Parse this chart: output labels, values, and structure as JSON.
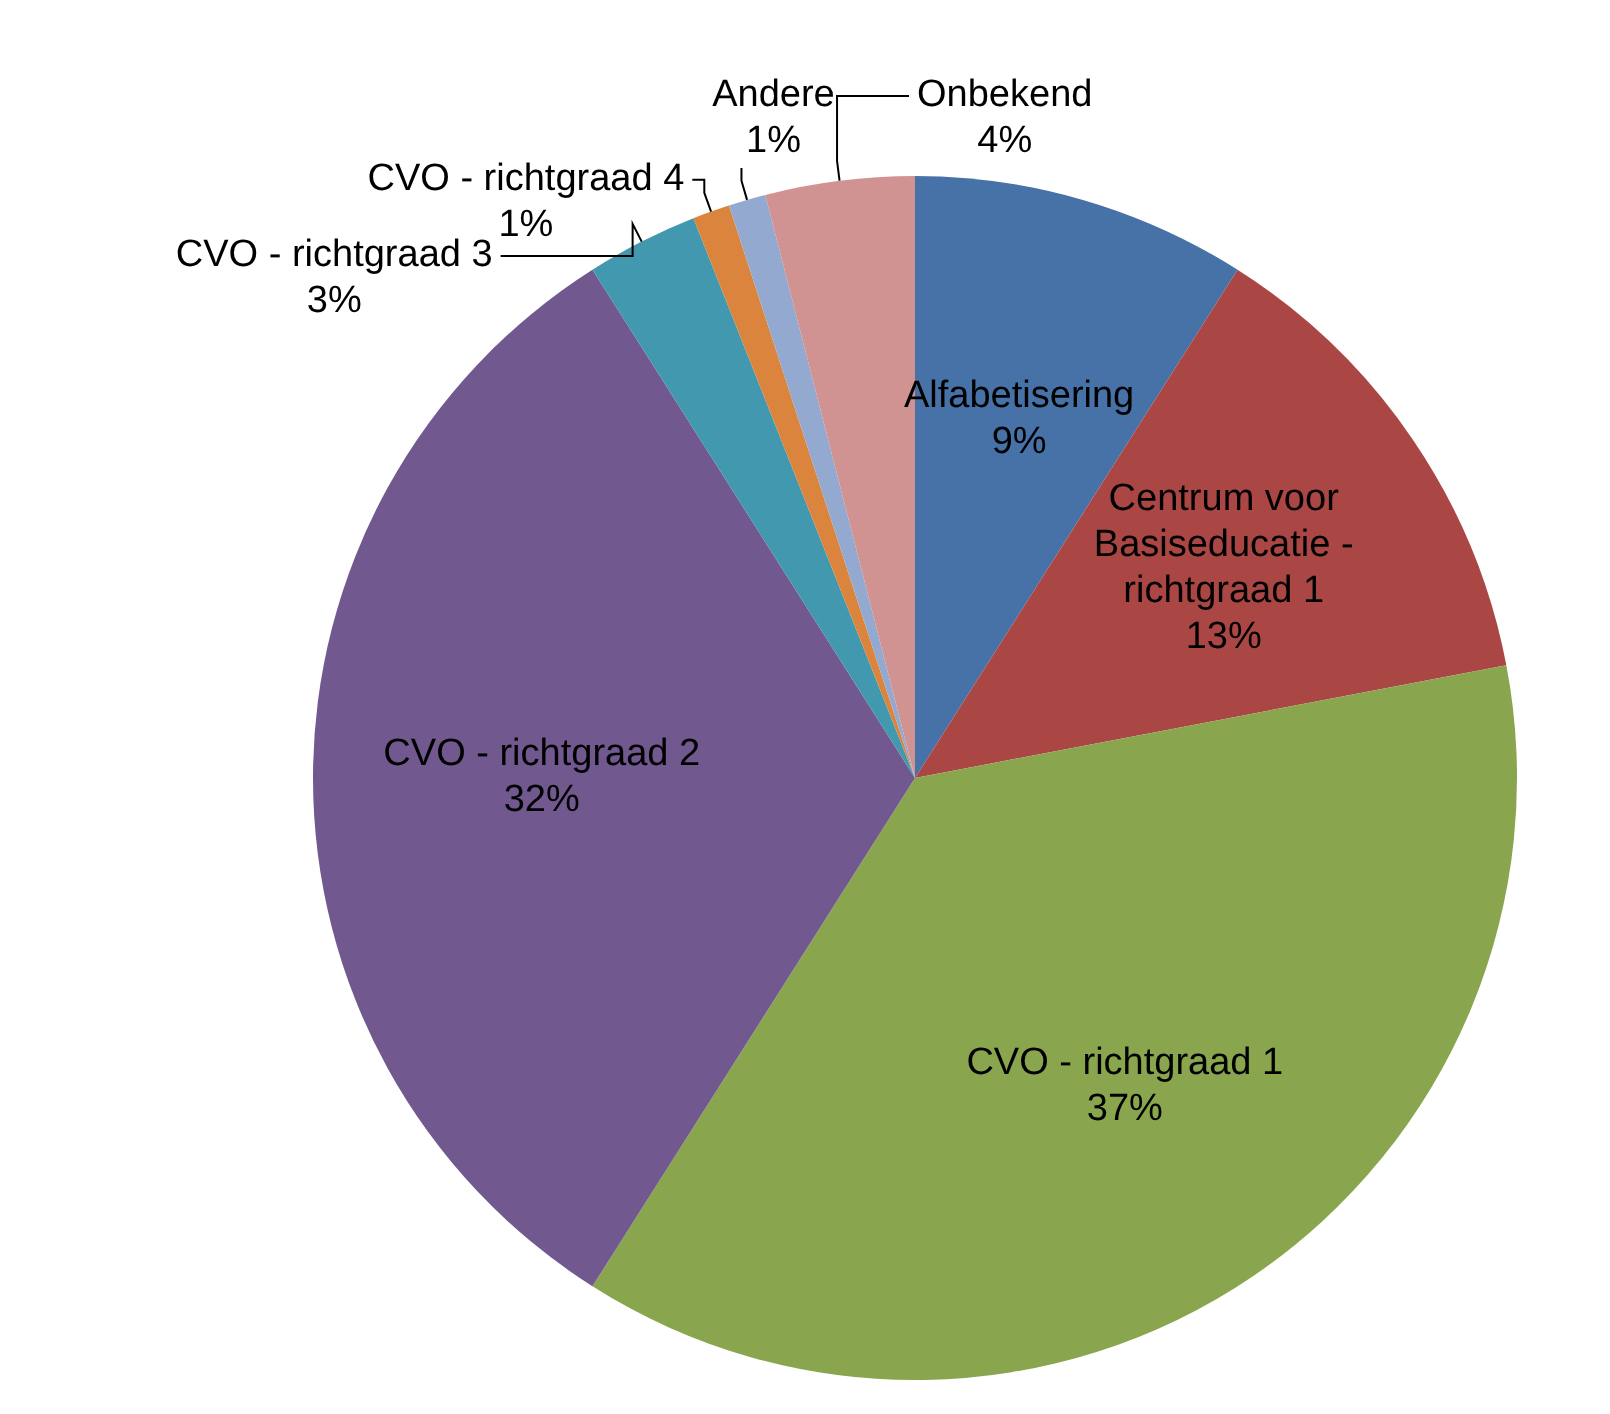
{
  "chart_data": {
    "type": "pie",
    "categories": [
      "Alfabetisering",
      "Centrum voor Basiseducatie - richtgraad 1",
      "CVO - richtgraad 1",
      "CVO - richtgraad 2",
      "CVO - richtgraad 3",
      "CVO - richtgraad 4",
      "Andere",
      "Onbekend"
    ],
    "values": [
      9,
      13,
      37,
      32,
      3,
      1,
      1,
      4
    ],
    "colors": [
      "#4672a8",
      "#aa4744",
      "#89a54e",
      "#71588f",
      "#4198af",
      "#db843d",
      "#93a9cf",
      "#d19392"
    ],
    "value_labels": [
      "9%",
      "13%",
      "37%",
      "32%",
      "3%",
      "1%",
      "1%",
      "4%"
    ]
  }
}
